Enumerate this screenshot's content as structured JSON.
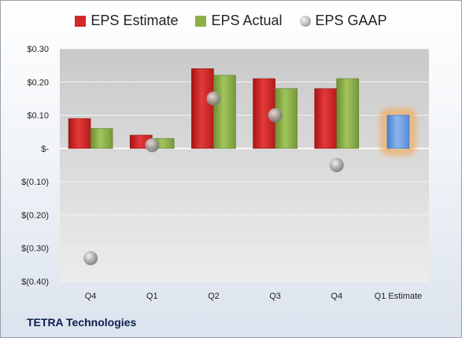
{
  "company": "TETRA Technologies",
  "legend": [
    {
      "name": "EPS Estimate",
      "color": "#d42a2a",
      "shape": "square"
    },
    {
      "name": "EPS Actual",
      "color": "#8db04a",
      "shape": "square"
    },
    {
      "name": "EPS GAAP",
      "color": "#b7b7b7",
      "shape": "circle"
    }
  ],
  "chart_data": {
    "type": "bar",
    "categories": [
      "Q4",
      "Q1",
      "Q2",
      "Q3",
      "Q4",
      "Q1 Estimate"
    ],
    "series": [
      {
        "name": "EPS Estimate",
        "color": "#d42a2a",
        "values": [
          0.09,
          0.04,
          0.24,
          0.21,
          0.18,
          null
        ]
      },
      {
        "name": "EPS Actual",
        "color": "#8db04a",
        "values": [
          0.06,
          0.03,
          0.22,
          0.18,
          0.21,
          null
        ]
      },
      {
        "name": "EPS GAAP",
        "color": "#b7b7b7",
        "kind": "marker",
        "values": [
          -0.33,
          0.01,
          0.15,
          0.1,
          -0.05,
          null
        ]
      }
    ],
    "forecast": {
      "category": "Q1 Estimate",
      "value": 0.1,
      "color": "#6fa0e0",
      "glow": "#f7a44a"
    },
    "ylim": [
      -0.4,
      0.3
    ],
    "yticks": [
      0.3,
      0.2,
      0.1,
      0.0,
      -0.1,
      -0.2,
      -0.3,
      -0.4
    ],
    "ytick_labels": [
      "$0.30",
      "$0.20",
      "$0.10",
      "$-",
      "$(0.10)",
      "$(0.20)",
      "$(0.30)",
      "$(0.40)"
    ],
    "grid": true,
    "legend_position": "top"
  }
}
